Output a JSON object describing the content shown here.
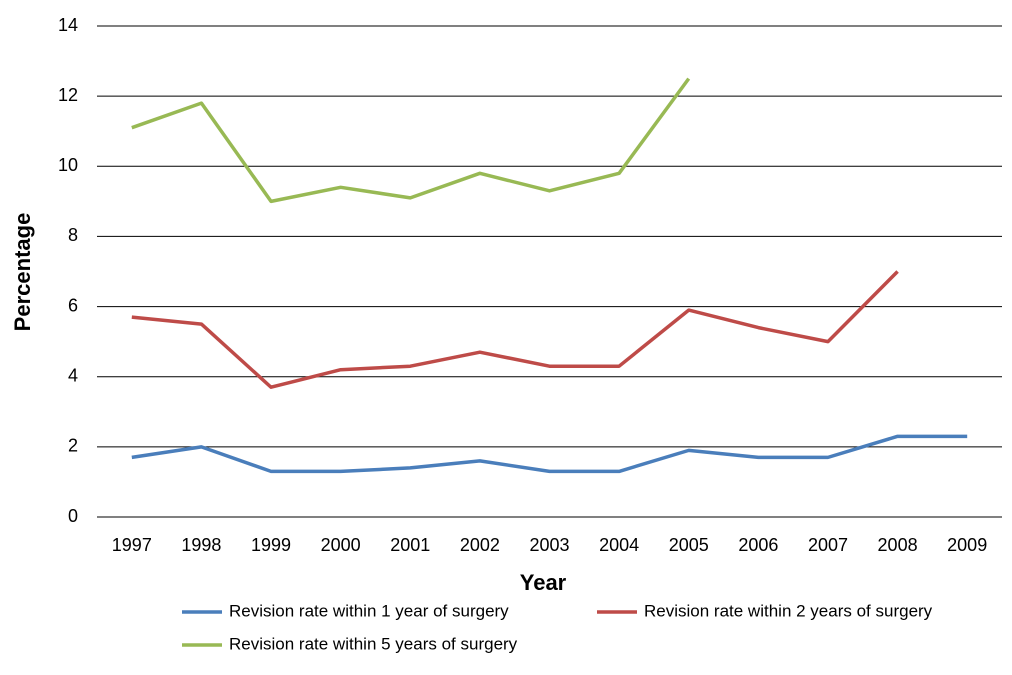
{
  "chart_data": {
    "type": "line",
    "y_label": "Percentage",
    "x_label": "Year",
    "categories": [
      "1997",
      "1998",
      "1999",
      "2000",
      "2001",
      "2002",
      "2003",
      "2004",
      "2005",
      "2006",
      "2007",
      "2008",
      "2009"
    ],
    "series": [
      {
        "name": "Revision rate within 1 year of surgery",
        "color": "#4a7ebb",
        "values": [
          1.7,
          2.0,
          1.3,
          1.3,
          1.4,
          1.6,
          1.3,
          1.3,
          1.9,
          1.7,
          1.7,
          2.3,
          2.3
        ]
      },
      {
        "name": "Revision rate within 2 years of surgery",
        "color": "#be4b48",
        "values": [
          5.7,
          5.5,
          3.7,
          4.2,
          4.3,
          4.7,
          4.3,
          4.3,
          5.9,
          5.4,
          5.0,
          7.0,
          null
        ]
      },
      {
        "name": "Revision rate within 5 years of surgery",
        "color": "#98b954",
        "values": [
          11.1,
          11.8,
          9.0,
          9.4,
          9.1,
          9.8,
          9.3,
          9.8,
          12.5,
          null,
          null,
          null,
          null
        ]
      }
    ],
    "ylim": [
      0,
      14
    ],
    "yticks": [
      0,
      2,
      4,
      6,
      8,
      10,
      12,
      14
    ],
    "grid": true
  }
}
